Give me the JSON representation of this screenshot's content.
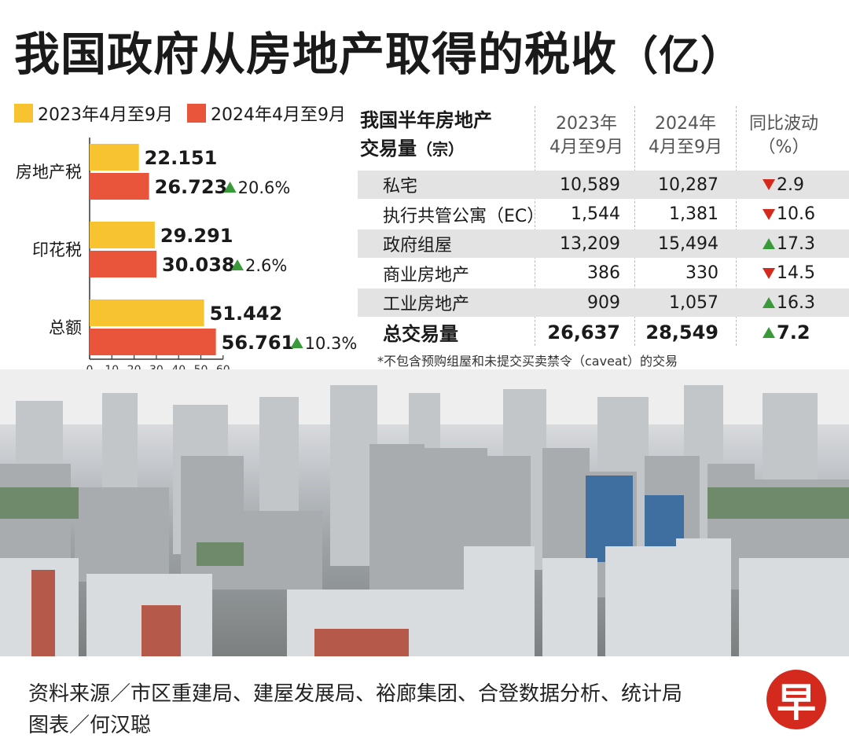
{
  "title": "我国政府从房地产取得的税收",
  "title_unit": "（亿）",
  "colors": {
    "y2023": "#f7c331",
    "y2024": "#e8553a",
    "up": "#3a9a3a",
    "down": "#d42a1e"
  },
  "legend": [
    "2023年4月至9月",
    "2024年4月至9月"
  ],
  "chart_data": {
    "type": "bar",
    "orientation": "horizontal",
    "categories": [
      "房地产税",
      "印花税",
      "总额"
    ],
    "series": [
      {
        "name": "2023年4月至9月",
        "values": [
          22.151,
          29.291,
          51.442
        ]
      },
      {
        "name": "2024年4月至9月",
        "values": [
          26.723,
          30.038,
          56.761
        ]
      }
    ],
    "value_labels": {
      "2023": [
        "22.151",
        "29.291",
        "51.442"
      ],
      "2024": [
        "26.723",
        "30.038",
        "56.761"
      ]
    },
    "changes": [
      "20.6%",
      "2.6%",
      "10.3%"
    ],
    "x_ticks": [
      "0",
      "10",
      "20",
      "30",
      "40",
      "50",
      "60"
    ],
    "xlim": [
      0,
      60
    ],
    "legend_position": "top-left"
  },
  "table": {
    "header_title": "我国半年房地产",
    "header_title2": "交易量",
    "header_title2_unit": "（宗）",
    "col1": [
      "2023年",
      "4月至9月"
    ],
    "col2": [
      "2024年",
      "4月至9月"
    ],
    "col3": [
      "同比波动",
      "（%）"
    ],
    "rows": [
      {
        "name": "私宅",
        "v2023": "10,589",
        "v2024": "10,287",
        "dir": "down",
        "change": "2.9"
      },
      {
        "name": "执行共管公寓（EC）",
        "v2023": "1,544",
        "v2024": "1,381",
        "dir": "down",
        "change": "10.6"
      },
      {
        "name": "政府组屋",
        "v2023": "13,209",
        "v2024": "15,494",
        "dir": "up",
        "change": "17.3"
      },
      {
        "name": "商业房地产",
        "v2023": "386",
        "v2024": "330",
        "dir": "down",
        "change": "14.5"
      },
      {
        "name": "工业房地产",
        "v2023": "909",
        "v2024": "1,057",
        "dir": "up",
        "change": "16.3"
      }
    ],
    "total": {
      "name": "总交易量",
      "v2023": "26,637",
      "v2024": "28,549",
      "dir": "up",
      "change": "7.2"
    },
    "footnote": "*不包含预购组屋和未提交买卖禁令（caveat）的交易"
  },
  "footer": {
    "sources": "资料来源／市区重建局、建屋发展局、裕廊集团、合登数据分析、统计局",
    "credit": "图表／何汉聪",
    "logo_char": "早"
  }
}
